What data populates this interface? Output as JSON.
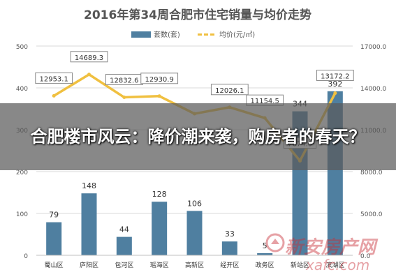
{
  "chart_data": {
    "type": "bar",
    "title": "2016年第34周合肥市住宅销量与均价走势",
    "categories": [
      "蜀山区",
      "庐阳区",
      "包河区",
      "瑶海区",
      "高新区",
      "经开区",
      "政务区",
      "新站区",
      "滨湖区"
    ],
    "series": [
      {
        "name": "套数(套)",
        "type": "bar",
        "axis": "left",
        "values": [
          79,
          148,
          44,
          128,
          106,
          33,
          5,
          344,
          392
        ],
        "labels": [
          "79",
          "148",
          "44",
          "128",
          "106",
          "33",
          "5",
          "344",
          "392"
        ]
      },
      {
        "name": "均价(元/㎡)",
        "type": "line",
        "axis": "right",
        "values": [
          12953.1,
          14689.3,
          12832.6,
          12930.9,
          11500.0,
          12026.1,
          11154.5,
          7674.0,
          13172.2
        ],
        "labels": [
          "12953.1",
          "14689.3",
          "12832.6",
          "12930.9",
          "",
          "12026.1",
          "11154.5",
          "7674.0",
          "13172.2"
        ]
      }
    ],
    "y_left": {
      "ylim": [
        0,
        500
      ],
      "ticks": [
        "0",
        "100",
        "200",
        "300",
        "400",
        "500"
      ]
    },
    "y_right": {
      "ylim": [
        0,
        17000
      ],
      "ticks": [
        "0.0",
        "5000.0",
        "8000.0",
        "11000.0",
        "14000.0",
        "17000.0"
      ]
    },
    "legend_position": "top-center",
    "grid": true,
    "colors": {
      "bar": "#4f7fa0",
      "line": "#f0c040",
      "title": "#555555",
      "label_border": "#888888"
    }
  },
  "overlay": {
    "headline": "合肥楼市风云：降价潮来袭，购房者的春天？"
  },
  "watermark": {
    "main": "新安房产网",
    "sub": "xafc.com"
  }
}
